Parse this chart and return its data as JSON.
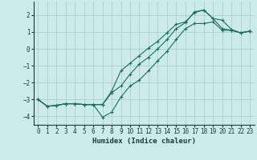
{
  "xlabel": "Humidex (Indice chaleur)",
  "bg_color": "#cdeaea",
  "grid_color": "#b0d4d4",
  "line_color": "#1a6e62",
  "xlim": [
    -0.5,
    23.5
  ],
  "ylim": [
    -4.5,
    2.8
  ],
  "xticks": [
    0,
    1,
    2,
    3,
    4,
    5,
    6,
    7,
    8,
    9,
    10,
    11,
    12,
    13,
    14,
    15,
    16,
    17,
    18,
    19,
    20,
    21,
    22,
    23
  ],
  "yticks": [
    -4,
    -3,
    -2,
    -1,
    0,
    1,
    2
  ],
  "line1_y": [
    -3.0,
    -3.4,
    -3.35,
    -3.25,
    -3.25,
    -3.3,
    -3.3,
    -4.05,
    -3.75,
    -2.85,
    -2.2,
    -1.85,
    -1.3,
    -0.7,
    -0.15,
    0.55,
    1.2,
    1.5,
    1.5,
    1.6,
    1.1,
    1.1,
    0.95,
    1.05
  ],
  "line2_y": [
    -3.0,
    -3.4,
    -3.35,
    -3.25,
    -3.25,
    -3.3,
    -3.3,
    -3.3,
    -2.6,
    -2.2,
    -1.5,
    -0.9,
    -0.5,
    0.0,
    0.55,
    1.2,
    1.55,
    2.2,
    2.3,
    1.8,
    1.2,
    1.1,
    0.95,
    1.05
  ],
  "line3_y": [
    -3.0,
    -3.4,
    -3.35,
    -3.25,
    -3.25,
    -3.3,
    -3.3,
    -3.3,
    -2.5,
    -1.3,
    -0.85,
    -0.4,
    0.05,
    0.45,
    0.95,
    1.45,
    1.6,
    2.15,
    2.3,
    1.8,
    1.7,
    1.15,
    0.95,
    1.05
  ]
}
